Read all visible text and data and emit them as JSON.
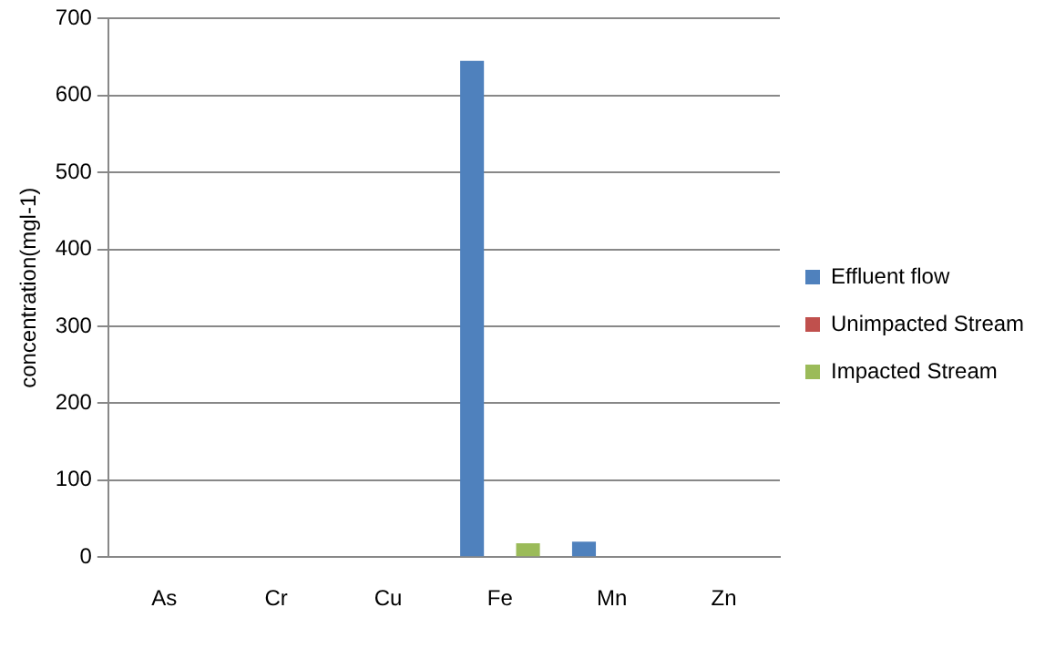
{
  "chart_data": {
    "type": "bar",
    "ylabel": "concentration(mgl-1)",
    "categories": [
      "As",
      "Cr",
      "Cu",
      "Fe",
      "Mn",
      "Zn"
    ],
    "series": [
      {
        "name": "Effluent flow",
        "color": "#4f81bd",
        "values": [
          0,
          0,
          0,
          645,
          20,
          0
        ]
      },
      {
        "name": "Unimpacted Stream",
        "color": "#c0504d",
        "values": [
          0,
          0,
          1,
          0,
          0,
          0
        ]
      },
      {
        "name": "Impacted Stream",
        "color": "#9bbb59",
        "values": [
          0,
          0,
          0,
          18,
          0,
          0
        ]
      }
    ],
    "ylim": [
      0,
      700
    ],
    "yticks": [
      0,
      100,
      200,
      300,
      400,
      500,
      600,
      700
    ],
    "grid": "y",
    "legend": "right"
  }
}
